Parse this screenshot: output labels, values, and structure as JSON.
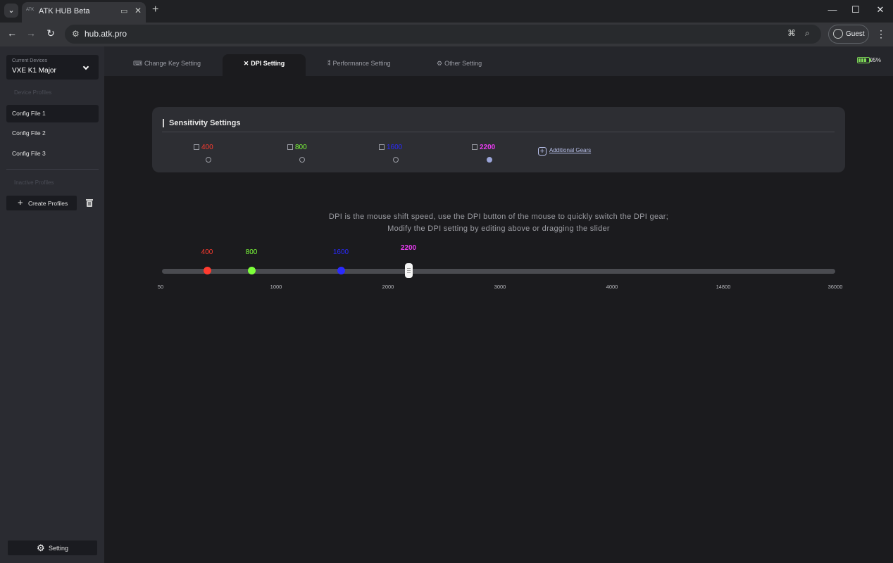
{
  "browser": {
    "tab_title": "ATK HUB Beta",
    "favicon_text": "ATK",
    "url": "hub.atk.pro",
    "profile_label": "Guest"
  },
  "sidebar": {
    "current_devices_caption": "Current Devices",
    "device_name": "VXE K1 Major",
    "device_profiles_caption": "Device Profiles",
    "configs": [
      {
        "label": "Config File 1",
        "active": true
      },
      {
        "label": "Config File 2",
        "active": false
      },
      {
        "label": "Config File 3",
        "active": false
      }
    ],
    "inactive_profiles_caption": "Inactive Profiles",
    "create_profiles_label": "Create Profiles",
    "setting_label": "Setting"
  },
  "tabs": [
    {
      "label": "Change Key Setting",
      "icon": "keyboard-icon",
      "active": false
    },
    {
      "label": "DPI Setting",
      "icon": "crosshair-icon",
      "active": true
    },
    {
      "label": "Performance Setting",
      "icon": "sliders-icon",
      "active": false
    },
    {
      "label": "Other Setting",
      "icon": "gear-icon",
      "active": false
    }
  ],
  "battery": {
    "percent": 95,
    "label": "95%"
  },
  "sensitivity": {
    "title": "Sensitivity Settings",
    "gears": [
      {
        "value": "400",
        "color": "#ff3b2f",
        "selected": false
      },
      {
        "value": "800",
        "color": "#7dff3a",
        "selected": false
      },
      {
        "value": "1600",
        "color": "#2a2aff",
        "selected": false
      },
      {
        "value": "2200",
        "color": "#e83cf0",
        "selected": true
      }
    ],
    "additional_gears_label": "Additional Gears"
  },
  "description": {
    "line1": "DPI is the mouse shift speed, use the DPI button of the mouse to quickly switch the DPI gear;",
    "line2": "Modify the DPI setting by editing above or dragging the slider"
  },
  "slider": {
    "ticks": [
      "50",
      "1000",
      "2000",
      "3000",
      "4000",
      "14800",
      "36000"
    ],
    "points": [
      {
        "value": "400",
        "color": "#ff3b2f"
      },
      {
        "value": "800",
        "color": "#7dff3a"
      },
      {
        "value": "1600",
        "color": "#2a2aff"
      },
      {
        "value": "2200",
        "color": "#e83cf0"
      }
    ]
  }
}
